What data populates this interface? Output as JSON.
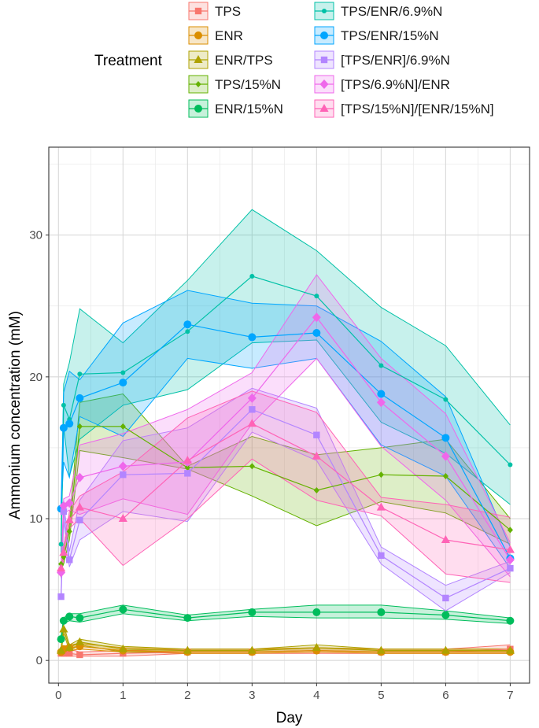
{
  "chart_data": {
    "type": "line",
    "xlabel": "Day",
    "ylabel": "Ammonium concentration (mM)",
    "xlim": [
      -0.15,
      7.3
    ],
    "ylim": [
      -1.6,
      36.2
    ],
    "xticks": [
      0,
      1,
      2,
      3,
      4,
      5,
      6,
      7
    ],
    "yticks": [
      0,
      10,
      20,
      30
    ],
    "grid": true,
    "legend": {
      "title": "Treatment",
      "position": "top"
    },
    "x": [
      0.04,
      0.08,
      0.17,
      0.33,
      1,
      2,
      3,
      4,
      5,
      6,
      7
    ],
    "series": [
      {
        "name": "TPS",
        "color": "#F8766D",
        "shape": "square",
        "values": [
          0.5,
          0.5,
          0.5,
          0.4,
          0.5,
          0.6,
          0.6,
          0.7,
          0.6,
          0.6,
          0.8
        ],
        "lower": [
          0.3,
          0.3,
          0.3,
          0.3,
          0.3,
          0.5,
          0.5,
          0.5,
          0.5,
          0.5,
          0.5
        ],
        "upper": [
          0.8,
          0.8,
          0.8,
          0.6,
          0.7,
          0.8,
          0.8,
          0.9,
          0.8,
          0.8,
          1.1
        ]
      },
      {
        "name": "ENR",
        "color": "#DB8E00",
        "shape": "circle",
        "values": [
          0.6,
          0.8,
          0.9,
          1.0,
          0.7,
          0.6,
          0.6,
          0.7,
          0.6,
          0.6,
          0.6
        ],
        "lower": [
          0.4,
          0.6,
          0.7,
          0.8,
          0.6,
          0.5,
          0.5,
          0.6,
          0.5,
          0.5,
          0.5
        ],
        "upper": [
          0.8,
          1.0,
          1.1,
          1.2,
          0.9,
          0.8,
          0.8,
          0.9,
          0.8,
          0.8,
          0.8
        ]
      },
      {
        "name": "ENR/TPS",
        "color": "#AEA200",
        "shape": "triangle",
        "values": [
          0.7,
          2.2,
          0.9,
          1.3,
          0.8,
          0.7,
          0.7,
          0.9,
          0.7,
          0.7,
          0.7
        ],
        "lower": [
          0.5,
          1.9,
          0.7,
          1.1,
          0.6,
          0.6,
          0.6,
          0.7,
          0.6,
          0.6,
          0.6
        ],
        "upper": [
          0.9,
          2.5,
          1.1,
          1.5,
          1.0,
          0.8,
          0.8,
          1.1,
          0.8,
          0.8,
          0.8
        ]
      },
      {
        "name": "TPS/15%N",
        "color": "#64B200",
        "shape": "diamond-small",
        "values": [
          6.8,
          7.3,
          9.1,
          16.5,
          16.5,
          13.6,
          13.7,
          12.0,
          13.1,
          13.0,
          9.2
        ],
        "lower": [
          6.4,
          6.8,
          8.5,
          14.8,
          14.3,
          13.5,
          11.6,
          9.5,
          11.2,
          10.4,
          8.2
        ],
        "upper": [
          7.2,
          7.8,
          9.7,
          18.2,
          18.8,
          13.7,
          15.8,
          14.5,
          15.0,
          15.6,
          10.0
        ]
      },
      {
        "name": "ENR/15%N",
        "color": "#00BD5C",
        "shape": "circle",
        "values": [
          1.5,
          2.8,
          3.1,
          3.0,
          3.6,
          3.0,
          3.4,
          3.4,
          3.4,
          3.2,
          2.8
        ],
        "lower": [
          1.3,
          2.6,
          2.8,
          2.7,
          3.3,
          2.8,
          3.1,
          3.0,
          3.0,
          2.9,
          2.6
        ],
        "upper": [
          1.7,
          3.0,
          3.3,
          3.3,
          3.9,
          3.2,
          3.6,
          3.9,
          3.9,
          3.5,
          3.0
        ]
      },
      {
        "name": "TPS/ENR/6.9%N",
        "color": "#00C1A7",
        "shape": "circle-small",
        "values": [
          8.2,
          18.0,
          17.0,
          20.2,
          20.3,
          23.2,
          27.1,
          25.7,
          20.8,
          18.4,
          13.8
        ],
        "lower": [
          7.6,
          16.5,
          13.0,
          15.6,
          18.0,
          19.1,
          22.4,
          22.6,
          16.8,
          14.6,
          11.0
        ],
        "upper": [
          8.8,
          19.5,
          21.0,
          24.8,
          22.4,
          26.8,
          31.8,
          28.9,
          24.9,
          22.2,
          16.6
        ]
      },
      {
        "name": "TPS/ENR/15%N",
        "color": "#00A6FF",
        "shape": "circle",
        "values": [
          10.7,
          16.4,
          16.7,
          18.5,
          19.6,
          23.7,
          22.8,
          23.1,
          18.8,
          15.7,
          7.2
        ],
        "lower": [
          10.4,
          14.0,
          12.9,
          17.2,
          15.8,
          21.3,
          20.6,
          21.3,
          15.2,
          13.0,
          6.5
        ],
        "upper": [
          11.0,
          18.9,
          20.4,
          19.8,
          23.8,
          26.1,
          25.2,
          25.0,
          22.5,
          18.6,
          8.0
        ]
      },
      {
        "name": "[TPS/ENR]/6.9%N",
        "color": "#B385FF",
        "shape": "square",
        "values": [
          4.5,
          10.5,
          7.1,
          9.9,
          13.1,
          13.2,
          17.7,
          15.9,
          7.4,
          4.4,
          6.5
        ],
        "lower": [
          4.3,
          9.8,
          6.6,
          8.5,
          10.5,
          9.8,
          16.1,
          14.1,
          6.8,
          3.5,
          6.2
        ],
        "upper": [
          4.7,
          11.2,
          7.7,
          11.3,
          15.5,
          16.4,
          19.2,
          17.8,
          8.0,
          5.3,
          7.0
        ]
      },
      {
        "name": "[TPS/6.9%N]/ENR",
        "color": "#EF67EB",
        "shape": "diamond",
        "values": [
          6.2,
          10.9,
          11.1,
          12.9,
          13.7,
          14.0,
          18.5,
          24.2,
          18.2,
          14.4,
          7.1
        ],
        "lower": [
          5.8,
          10.4,
          10.6,
          10.3,
          11.4,
          10.3,
          16.7,
          21.3,
          15.1,
          11.3,
          5.9
        ],
        "upper": [
          6.6,
          11.4,
          11.6,
          15.2,
          16.0,
          17.7,
          20.3,
          27.2,
          21.3,
          17.4,
          8.3
        ]
      },
      {
        "name": "[TPS/15%N]/[ENR/15%N]",
        "color": "#FF63B6",
        "shape": "triangle",
        "values": [
          6.5,
          7.6,
          9.9,
          10.8,
          10.0,
          14.1,
          16.7,
          14.4,
          10.8,
          8.5,
          7.8
        ],
        "lower": [
          6.2,
          7.1,
          9.3,
          10.0,
          6.7,
          10.0,
          14.2,
          11.3,
          10.2,
          6.1,
          5.5
        ],
        "upper": [
          6.8,
          8.1,
          10.5,
          11.6,
          13.3,
          17.1,
          19.0,
          17.5,
          11.5,
          11.0,
          10.1
        ]
      }
    ]
  }
}
